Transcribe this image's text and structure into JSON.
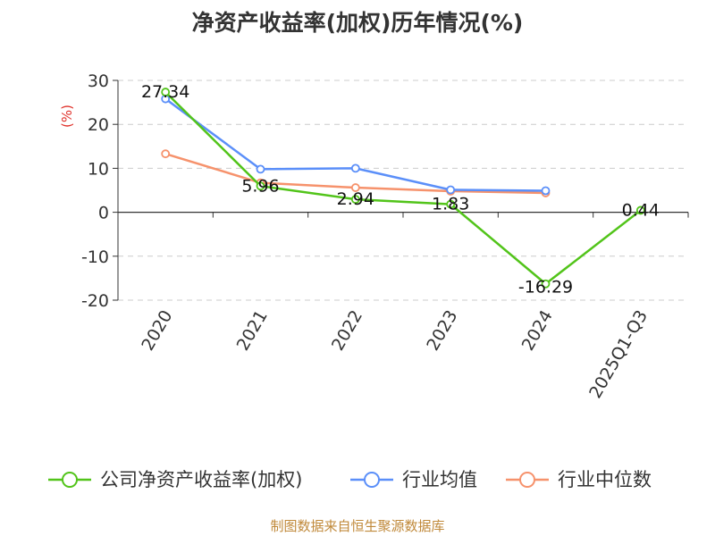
{
  "title": "净资产收益率(加权)历年情况(%)",
  "source": "制图数据来自恒生聚源数据库",
  "chart_data": {
    "type": "line",
    "title": "净资产收益率(加权)历年情况(%)",
    "ylabel": "(%)",
    "ylim": [
      -20,
      30
    ],
    "yticks": [
      30,
      20,
      10,
      0,
      -10,
      -20
    ],
    "categories": [
      "2020",
      "2021",
      "2022",
      "2023",
      "2024",
      "2025Q1-Q3"
    ],
    "grid": true,
    "legend_position": "bottom",
    "series": [
      {
        "name": "公司净资产收益率(加权)",
        "color": "#52c41a",
        "values": [
          27.34,
          5.96,
          2.94,
          1.83,
          -16.29,
          0.44
        ],
        "labels": [
          "27.34",
          "5.96",
          "2.94",
          "1.83",
          "-16.29",
          "0.44"
        ]
      },
      {
        "name": "行业均值",
        "color": "#5b8ff9",
        "values": [
          25.8,
          9.8,
          10.0,
          5.1,
          4.9,
          null
        ]
      },
      {
        "name": "行业中位数",
        "color": "#f6926c",
        "values": [
          13.3,
          6.7,
          5.6,
          4.8,
          4.4,
          null
        ]
      }
    ]
  }
}
